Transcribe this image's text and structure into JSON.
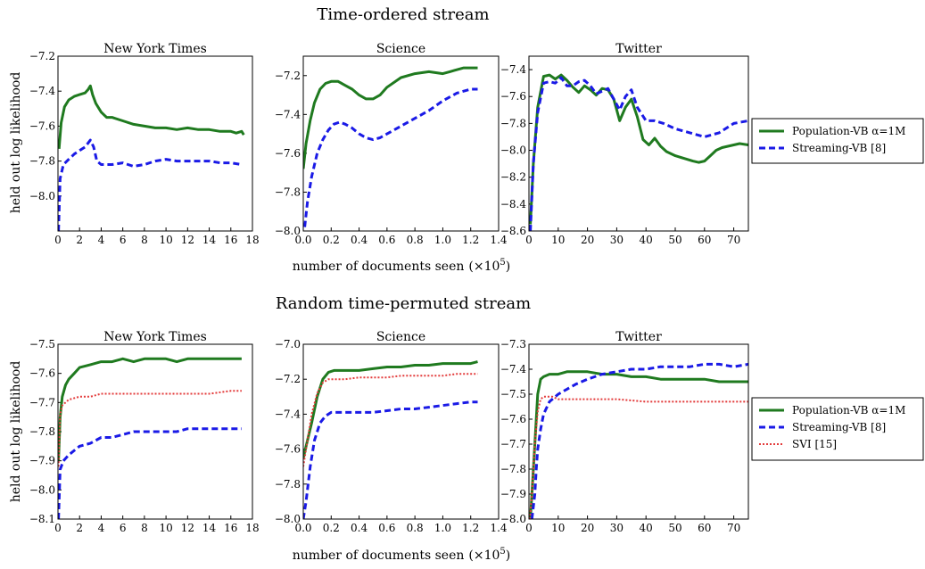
{
  "colors": {
    "population_vb": "#1f7a1f",
    "streaming_vb": "#1a1ae6",
    "svi": "#e33b3b"
  },
  "rows": [
    {
      "title": "Time-ordered stream",
      "xlabel": "number of documents seen",
      "xlabel_suffix": "(×10",
      "xlabel_exp": "5",
      "xlabel_close": ")",
      "ylabel": "held out log likelihood",
      "legend": [
        "Population-VB α=1M",
        "Streaming-VB [8]"
      ]
    },
    {
      "title": "Random time-permuted stream",
      "xlabel": "number of documents seen",
      "xlabel_suffix": "(×10",
      "xlabel_exp": "5",
      "xlabel_close": ")",
      "ylabel": "held out log likelihood",
      "legend": [
        "Population-VB α=1M",
        "Streaming-VB [8]",
        "SVI [15]"
      ]
    }
  ],
  "chart_data": [
    {
      "type": "line",
      "title": "New York Times",
      "xlim": [
        0,
        18
      ],
      "ylim": [
        -8.2,
        -7.2
      ],
      "xticks": [
        "0",
        "2",
        "4",
        "6",
        "8",
        "10",
        "12",
        "14",
        "16",
        "18"
      ],
      "yticks": [
        "−7.2",
        "−7.4",
        "−7.6",
        "−7.8",
        "−8.0"
      ],
      "series": [
        {
          "name": "Population-VB α=1M",
          "x": [
            0.1,
            0.3,
            0.6,
            1,
            1.5,
            2,
            2.5,
            2.8,
            3,
            3.2,
            3.5,
            4,
            4.5,
            5,
            6,
            7,
            8,
            9,
            10,
            11,
            12,
            13,
            14,
            15,
            16,
            16.5,
            17,
            17.2
          ],
          "y": [
            -7.73,
            -7.58,
            -7.49,
            -7.45,
            -7.43,
            -7.42,
            -7.41,
            -7.39,
            -7.37,
            -7.42,
            -7.47,
            -7.52,
            -7.55,
            -7.55,
            -7.57,
            -7.59,
            -7.6,
            -7.61,
            -7.61,
            -7.62,
            -7.61,
            -7.62,
            -7.62,
            -7.63,
            -7.63,
            -7.64,
            -7.63,
            -7.65
          ]
        },
        {
          "name": "Streaming-VB [8]",
          "x": [
            0.05,
            0.2,
            0.5,
            1,
            1.5,
            2,
            2.5,
            3,
            3.3,
            3.6,
            4,
            5,
            6,
            7,
            8,
            9,
            10,
            11,
            12,
            13,
            14,
            15,
            16,
            17
          ],
          "y": [
            -8.2,
            -7.9,
            -7.82,
            -7.79,
            -7.76,
            -7.74,
            -7.72,
            -7.68,
            -7.72,
            -7.8,
            -7.82,
            -7.82,
            -7.81,
            -7.83,
            -7.82,
            -7.8,
            -7.79,
            -7.8,
            -7.8,
            -7.8,
            -7.8,
            -7.81,
            -7.81,
            -7.82
          ]
        }
      ]
    },
    {
      "type": "line",
      "title": "Science",
      "xlim": [
        0,
        1.4
      ],
      "ylim": [
        -8.0,
        -7.1
      ],
      "xticks": [
        "0.0",
        "0.2",
        "0.4",
        "0.6",
        "0.8",
        "1.0",
        "1.2",
        "1.4"
      ],
      "yticks": [
        "−7.2",
        "−7.4",
        "−7.6",
        "−7.8",
        "−8.0"
      ],
      "series": [
        {
          "name": "Population-VB α=1M",
          "x": [
            0,
            0.02,
            0.05,
            0.08,
            0.12,
            0.16,
            0.2,
            0.25,
            0.3,
            0.35,
            0.4,
            0.45,
            0.5,
            0.55,
            0.6,
            0.7,
            0.8,
            0.9,
            1.0,
            1.05,
            1.1,
            1.15,
            1.2,
            1.25
          ],
          "y": [
            -7.68,
            -7.55,
            -7.43,
            -7.34,
            -7.27,
            -7.24,
            -7.23,
            -7.23,
            -7.25,
            -7.27,
            -7.3,
            -7.32,
            -7.32,
            -7.3,
            -7.26,
            -7.21,
            -7.19,
            -7.18,
            -7.19,
            -7.18,
            -7.17,
            -7.16,
            -7.16,
            -7.16
          ]
        },
        {
          "name": "Streaming-VB [8]",
          "x": [
            0.01,
            0.03,
            0.06,
            0.1,
            0.14,
            0.18,
            0.22,
            0.26,
            0.3,
            0.35,
            0.4,
            0.45,
            0.5,
            0.55,
            0.6,
            0.7,
            0.8,
            0.9,
            1.0,
            1.1,
            1.2,
            1.25
          ],
          "y": [
            -7.98,
            -7.85,
            -7.72,
            -7.6,
            -7.53,
            -7.48,
            -7.45,
            -7.44,
            -7.45,
            -7.47,
            -7.5,
            -7.52,
            -7.53,
            -7.52,
            -7.5,
            -7.46,
            -7.42,
            -7.38,
            -7.33,
            -7.29,
            -7.27,
            -7.27
          ]
        }
      ]
    },
    {
      "type": "line",
      "title": "Twitter",
      "xlim": [
        0,
        75
      ],
      "ylim": [
        -8.6,
        -7.3
      ],
      "xticks": [
        "0",
        "10",
        "20",
        "30",
        "40",
        "50",
        "60",
        "70"
      ],
      "yticks": [
        "−7.4",
        "−7.6",
        "−7.8",
        "−8.0",
        "−8.2",
        "−8.4",
        "−8.6"
      ],
      "series": [
        {
          "name": "Population-VB α=1M",
          "x": [
            0.5,
            1.5,
            3,
            5,
            7,
            9,
            11,
            13,
            15,
            17,
            19,
            21,
            23,
            25,
            27,
            29,
            31,
            33,
            35,
            37,
            39,
            41,
            43,
            45,
            47,
            50,
            53,
            56,
            58,
            60,
            62,
            64,
            66,
            68,
            70,
            72,
            75
          ],
          "y": [
            -8.55,
            -8.1,
            -7.68,
            -7.45,
            -7.44,
            -7.47,
            -7.44,
            -7.48,
            -7.53,
            -7.57,
            -7.52,
            -7.55,
            -7.59,
            -7.54,
            -7.55,
            -7.62,
            -7.78,
            -7.68,
            -7.62,
            -7.75,
            -7.92,
            -7.96,
            -7.91,
            -7.97,
            -8.01,
            -8.04,
            -8.06,
            -8.08,
            -8.09,
            -8.08,
            -8.04,
            -8.0,
            -7.98,
            -7.97,
            -7.96,
            -7.95,
            -7.96
          ]
        },
        {
          "name": "Streaming-VB [8]",
          "x": [
            0.5,
            1.5,
            3,
            5,
            7,
            9,
            11,
            13,
            15,
            17,
            19,
            21,
            23,
            25,
            27,
            29,
            31,
            33,
            35,
            37,
            40,
            43,
            46,
            50,
            55,
            60,
            65,
            70,
            75
          ],
          "y": [
            -8.6,
            -8.1,
            -7.72,
            -7.5,
            -7.49,
            -7.5,
            -7.46,
            -7.52,
            -7.52,
            -7.49,
            -7.48,
            -7.52,
            -7.58,
            -7.56,
            -7.54,
            -7.62,
            -7.7,
            -7.6,
            -7.55,
            -7.68,
            -7.78,
            -7.78,
            -7.8,
            -7.84,
            -7.87,
            -7.9,
            -7.87,
            -7.8,
            -7.78
          ]
        }
      ]
    },
    {
      "type": "line",
      "title": "New York Times",
      "xlim": [
        0,
        18
      ],
      "ylim": [
        -8.1,
        -7.5
      ],
      "xticks": [
        "0",
        "2",
        "4",
        "6",
        "8",
        "10",
        "12",
        "14",
        "16",
        "18"
      ],
      "yticks": [
        "−7.5",
        "−7.6",
        "−7.7",
        "−7.8",
        "−7.9",
        "−8.0",
        "−8.1"
      ],
      "series": [
        {
          "name": "Population-VB α=1M",
          "x": [
            0.05,
            0.2,
            0.4,
            0.7,
            1,
            1.5,
            2,
            3,
            4,
            5,
            6,
            7,
            8,
            9,
            10,
            11,
            12,
            13,
            14,
            15,
            16,
            17
          ],
          "y": [
            -7.9,
            -7.75,
            -7.68,
            -7.64,
            -7.62,
            -7.6,
            -7.58,
            -7.57,
            -7.56,
            -7.56,
            -7.55,
            -7.56,
            -7.55,
            -7.55,
            -7.55,
            -7.56,
            -7.55,
            -7.55,
            -7.55,
            -7.55,
            -7.55,
            -7.55
          ]
        },
        {
          "name": "Streaming-VB [8]",
          "x": [
            0.05,
            0.2,
            0.5,
            1,
            2,
            3,
            4,
            5,
            6,
            7,
            8,
            9,
            10,
            11,
            12,
            13,
            14,
            15,
            16,
            17
          ],
          "y": [
            -8.1,
            -7.93,
            -7.9,
            -7.88,
            -7.85,
            -7.84,
            -7.82,
            -7.82,
            -7.81,
            -7.8,
            -7.8,
            -7.8,
            -7.8,
            -7.8,
            -7.79,
            -7.79,
            -7.79,
            -7.79,
            -7.79,
            -7.79
          ]
        },
        {
          "name": "SVI [15]",
          "x": [
            0.05,
            0.2,
            0.4,
            0.7,
            1,
            2,
            3,
            4,
            6,
            8,
            10,
            12,
            14,
            16,
            17
          ],
          "y": [
            -7.92,
            -7.74,
            -7.71,
            -7.7,
            -7.69,
            -7.68,
            -7.68,
            -7.67,
            -7.67,
            -7.67,
            -7.67,
            -7.67,
            -7.67,
            -7.66,
            -7.66
          ]
        }
      ]
    },
    {
      "type": "line",
      "title": "Science",
      "xlim": [
        0,
        1.4
      ],
      "ylim": [
        -8.0,
        -7.0
      ],
      "xticks": [
        "0.0",
        "0.2",
        "0.4",
        "0.6",
        "0.8",
        "1.0",
        "1.2",
        "1.4"
      ],
      "yticks": [
        "−7.0",
        "−7.2",
        "−7.4",
        "−7.6",
        "−7.8",
        "−8.0"
      ],
      "series": [
        {
          "name": "Population-VB α=1M",
          "x": [
            0,
            0.03,
            0.06,
            0.1,
            0.14,
            0.18,
            0.22,
            0.26,
            0.3,
            0.4,
            0.5,
            0.6,
            0.7,
            0.8,
            0.9,
            1.0,
            1.1,
            1.2,
            1.25
          ],
          "y": [
            -7.65,
            -7.55,
            -7.45,
            -7.3,
            -7.2,
            -7.16,
            -7.15,
            -7.15,
            -7.15,
            -7.15,
            -7.14,
            -7.13,
            -7.13,
            -7.12,
            -7.12,
            -7.11,
            -7.11,
            -7.11,
            -7.1
          ]
        },
        {
          "name": "Streaming-VB [8]",
          "x": [
            0,
            0.02,
            0.05,
            0.08,
            0.12,
            0.16,
            0.2,
            0.25,
            0.3,
            0.4,
            0.5,
            0.6,
            0.7,
            0.8,
            0.9,
            1.0,
            1.1,
            1.2,
            1.25
          ],
          "y": [
            -8.0,
            -7.9,
            -7.7,
            -7.55,
            -7.45,
            -7.41,
            -7.39,
            -7.39,
            -7.39,
            -7.39,
            -7.39,
            -7.38,
            -7.37,
            -7.37,
            -7.36,
            -7.35,
            -7.34,
            -7.33,
            -7.33
          ]
        },
        {
          "name": "SVI [15]",
          "x": [
            0,
            0.03,
            0.06,
            0.1,
            0.14,
            0.18,
            0.22,
            0.3,
            0.4,
            0.5,
            0.6,
            0.7,
            0.8,
            0.9,
            1.0,
            1.1,
            1.2,
            1.25
          ],
          "y": [
            -7.7,
            -7.55,
            -7.4,
            -7.28,
            -7.22,
            -7.2,
            -7.2,
            -7.2,
            -7.19,
            -7.19,
            -7.19,
            -7.18,
            -7.18,
            -7.18,
            -7.18,
            -7.17,
            -7.17,
            -7.17
          ]
        }
      ]
    },
    {
      "type": "line",
      "title": "Twitter",
      "xlim": [
        0,
        75
      ],
      "ylim": [
        -8.0,
        -7.3
      ],
      "xticks": [
        "0",
        "10",
        "20",
        "30",
        "40",
        "50",
        "60",
        "70"
      ],
      "yticks": [
        "−7.3",
        "−7.4",
        "−7.5",
        "−7.6",
        "−7.7",
        "−7.8",
        "−7.9",
        "−8.0"
      ],
      "series": [
        {
          "name": "Population-VB α=1M",
          "x": [
            0.5,
            1,
            2,
            3,
            4,
            5,
            7,
            10,
            13,
            15,
            18,
            20,
            25,
            30,
            35,
            40,
            45,
            50,
            55,
            60,
            65,
            70,
            75
          ],
          "y": [
            -8.0,
            -7.9,
            -7.7,
            -7.5,
            -7.44,
            -7.43,
            -7.42,
            -7.42,
            -7.41,
            -7.41,
            -7.41,
            -7.41,
            -7.42,
            -7.42,
            -7.43,
            -7.43,
            -7.44,
            -7.44,
            -7.44,
            -7.44,
            -7.45,
            -7.45,
            -7.45
          ]
        },
        {
          "name": "Streaming-VB [8]",
          "x": [
            1,
            2,
            2.5,
            3,
            4,
            5,
            7,
            10,
            13,
            16,
            20,
            25,
            30,
            35,
            40,
            45,
            50,
            55,
            60,
            65,
            70,
            75
          ],
          "y": [
            -8.0,
            -7.9,
            -7.8,
            -7.72,
            -7.64,
            -7.58,
            -7.53,
            -7.5,
            -7.48,
            -7.46,
            -7.44,
            -7.42,
            -7.41,
            -7.4,
            -7.4,
            -7.39,
            -7.39,
            -7.39,
            -7.38,
            -7.38,
            -7.39,
            -7.38
          ]
        },
        {
          "name": "SVI [15]",
          "x": [
            0.3,
            1,
            2,
            3,
            4,
            5,
            6,
            8,
            10,
            15,
            20,
            30,
            40,
            50,
            60,
            70,
            75
          ],
          "y": [
            -8.0,
            -7.9,
            -7.7,
            -7.57,
            -7.52,
            -7.51,
            -7.51,
            -7.51,
            -7.52,
            -7.52,
            -7.52,
            -7.52,
            -7.53,
            -7.53,
            -7.53,
            -7.53,
            -7.53
          ]
        }
      ]
    }
  ]
}
